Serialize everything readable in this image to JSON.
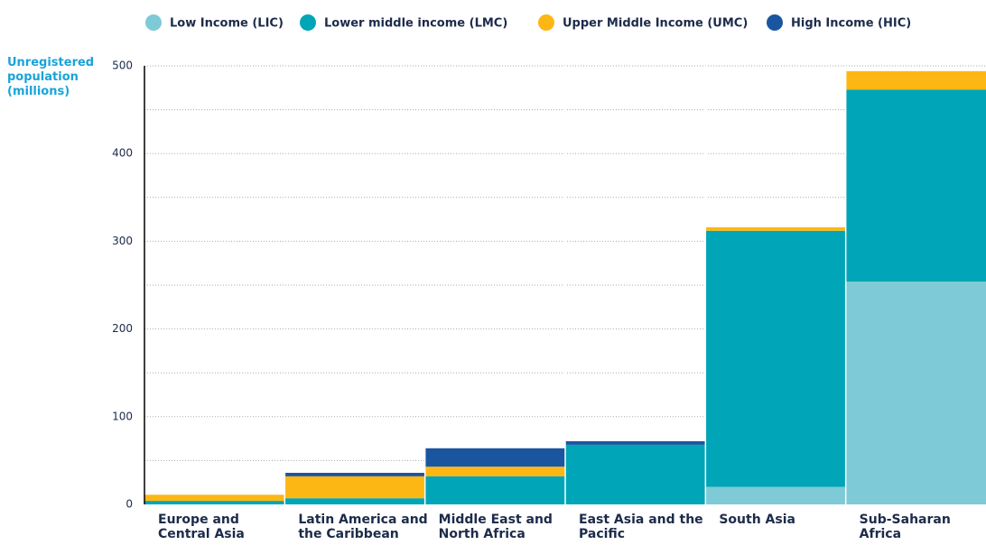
{
  "chart_data": {
    "type": "stacked_bar",
    "ylabel": "Unregistered population (millions)",
    "categories": [
      "Europe and Central Asia",
      "Latin America and the Caribbean",
      "Middle East and North Africa",
      "East Asia and the Pacific",
      "South Asia",
      "Sub-Saharan Africa"
    ],
    "series": [
      {
        "name": "Low Income (LIC)",
        "color": "#7ecad6",
        "values": [
          0,
          0,
          0,
          0,
          20,
          254
        ]
      },
      {
        "name": "Lower middle income (LMC)",
        "color": "#00a5b8",
        "values": [
          4,
          7,
          32,
          68,
          292,
          219
        ]
      },
      {
        "name": "Upper Middle Income (UMC)",
        "color": "#fdb714",
        "values": [
          7,
          25,
          11,
          0,
          4,
          21
        ]
      },
      {
        "name": "High Income (HIC)",
        "color": "#1a56a0",
        "values": [
          0,
          4,
          21,
          4,
          0,
          0
        ]
      }
    ],
    "ylim": [
      0,
      500
    ],
    "yticks": [
      0,
      100,
      200,
      300,
      400,
      500
    ],
    "minor_yticks": [
      50,
      150,
      250,
      350,
      450
    ],
    "grid": true,
    "legend": "top"
  }
}
